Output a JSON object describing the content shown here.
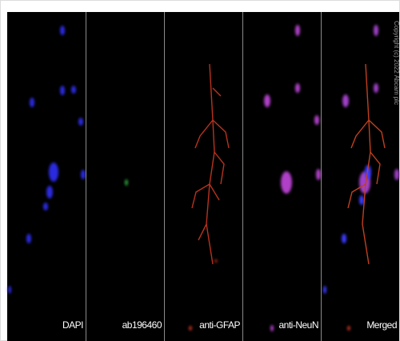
{
  "panels": [
    {
      "label": "DAPI"
    },
    {
      "label": "ab196460"
    },
    {
      "label": "anti-GFAP"
    },
    {
      "label": "anti-NeuN"
    },
    {
      "label": "Merged"
    }
  ],
  "copyright": "Copyright (c) 2022 Abcam plc"
}
